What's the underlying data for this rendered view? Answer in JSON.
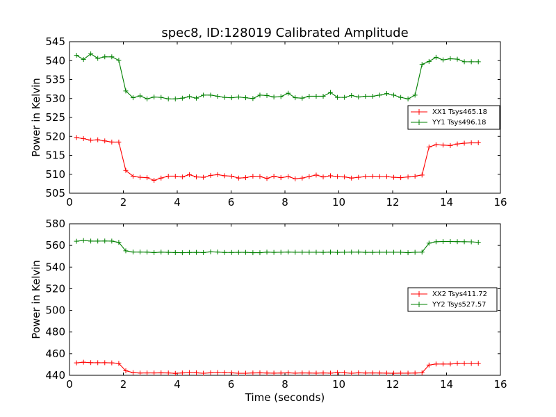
{
  "chart_data": [
    {
      "type": "line",
      "title": "spec8, ID:128019 Calibrated Amplitude",
      "xlabel": "",
      "ylabel": "Power in Kelvin",
      "xlim": [
        0,
        16
      ],
      "ylim": [
        505,
        545
      ],
      "xticks": [
        0,
        2,
        4,
        6,
        8,
        10,
        12,
        14,
        16
      ],
      "yticks": [
        505,
        510,
        515,
        520,
        525,
        530,
        535,
        540,
        545
      ],
      "grid": false,
      "legend_position": "right",
      "x": [
        0.26,
        0.52,
        0.79,
        1.05,
        1.31,
        1.57,
        1.83,
        2.09,
        2.36,
        2.62,
        2.88,
        3.14,
        3.4,
        3.67,
        3.93,
        4.19,
        4.45,
        4.71,
        4.97,
        5.24,
        5.5,
        5.76,
        6.02,
        6.28,
        6.54,
        6.81,
        7.07,
        7.33,
        7.59,
        7.85,
        8.12,
        8.38,
        8.64,
        8.9,
        9.16,
        9.42,
        9.69,
        9.95,
        10.21,
        10.47,
        10.73,
        10.99,
        11.26,
        11.52,
        11.78,
        12.04,
        12.3,
        12.57,
        12.83,
        13.09,
        13.35,
        13.61,
        13.87,
        14.14,
        14.4,
        14.66,
        14.92,
        15.18
      ],
      "series": [
        {
          "name": "XX1 Tsys465.18",
          "color": "#ff0000",
          "values": [
            519.7,
            519.4,
            519.0,
            519.1,
            518.8,
            518.5,
            518.5,
            511.0,
            509.5,
            509.2,
            509.1,
            508.4,
            509.0,
            509.5,
            509.5,
            509.3,
            509.9,
            509.3,
            509.2,
            509.7,
            509.9,
            509.6,
            509.5,
            509.0,
            509.1,
            509.5,
            509.4,
            508.9,
            509.5,
            509.1,
            509.4,
            508.8,
            509.0,
            509.4,
            509.8,
            509.3,
            509.6,
            509.4,
            509.3,
            509.0,
            509.2,
            509.4,
            509.5,
            509.4,
            509.4,
            509.2,
            509.1,
            509.3,
            509.5,
            509.8,
            517.2,
            517.8,
            517.7,
            517.6,
            518.0,
            518.2,
            518.3,
            518.3
          ]
        },
        {
          "name": "YY1 Tsys496.18",
          "color": "#008000",
          "values": [
            541.4,
            540.3,
            541.8,
            540.6,
            541.0,
            541.0,
            540.1,
            532.0,
            530.2,
            530.7,
            529.9,
            530.4,
            530.3,
            529.9,
            529.9,
            530.1,
            530.5,
            530.1,
            530.9,
            530.9,
            530.6,
            530.3,
            530.2,
            530.4,
            530.2,
            530.0,
            530.9,
            530.8,
            530.4,
            530.5,
            531.4,
            530.2,
            530.1,
            530.6,
            530.6,
            530.6,
            531.6,
            530.3,
            530.3,
            530.8,
            530.4,
            530.6,
            530.6,
            530.9,
            531.3,
            530.9,
            530.3,
            529.9,
            530.9,
            539.0,
            539.8,
            540.9,
            540.2,
            540.5,
            540.4,
            539.7,
            539.7,
            539.7
          ]
        }
      ]
    },
    {
      "type": "line",
      "title": "",
      "xlabel": "Time (seconds)",
      "ylabel": "Power in Kelvin",
      "xlim": [
        0,
        16
      ],
      "ylim": [
        440,
        580
      ],
      "xticks": [
        0,
        2,
        4,
        6,
        8,
        10,
        12,
        14,
        16
      ],
      "yticks": [
        440,
        460,
        480,
        500,
        520,
        540,
        560,
        580
      ],
      "grid": false,
      "legend_position": "right",
      "x": [
        0.26,
        0.52,
        0.79,
        1.05,
        1.31,
        1.57,
        1.83,
        2.09,
        2.36,
        2.62,
        2.88,
        3.14,
        3.4,
        3.67,
        3.93,
        4.19,
        4.45,
        4.71,
        4.97,
        5.24,
        5.5,
        5.76,
        6.02,
        6.28,
        6.54,
        6.81,
        7.07,
        7.33,
        7.59,
        7.85,
        8.12,
        8.38,
        8.64,
        8.9,
        9.16,
        9.42,
        9.69,
        9.95,
        10.21,
        10.47,
        10.73,
        10.99,
        11.26,
        11.52,
        11.78,
        12.04,
        12.3,
        12.57,
        12.83,
        13.09,
        13.35,
        13.61,
        13.87,
        14.14,
        14.4,
        14.66,
        14.92,
        15.18
      ],
      "series": [
        {
          "name": "XX2 Tsys411.72",
          "color": "#ff0000",
          "values": [
            451.5,
            452.1,
            451.7,
            451.6,
            451.6,
            451.5,
            451.0,
            444.2,
            442.5,
            442.1,
            442.2,
            442.2,
            442.3,
            442.2,
            441.8,
            442.2,
            442.6,
            442.3,
            441.9,
            442.3,
            442.6,
            442.4,
            442.3,
            441.9,
            441.9,
            442.2,
            442.3,
            442.1,
            442.0,
            442.1,
            442.3,
            442.0,
            442.2,
            442.1,
            442.0,
            442.2,
            442.0,
            442.5,
            442.3,
            441.9,
            442.3,
            442.1,
            442.2,
            442.1,
            442.0,
            441.9,
            442.0,
            442.0,
            442.1,
            442.3,
            449.5,
            450.4,
            450.4,
            450.4,
            451.1,
            451.0,
            450.9,
            450.9
          ]
        },
        {
          "name": "YY2 Tsys527.57",
          "color": "#008000",
          "values": [
            563.9,
            564.6,
            564.0,
            564.0,
            564.1,
            564.0,
            562.8,
            555.0,
            553.9,
            553.9,
            553.8,
            553.4,
            553.8,
            553.6,
            553.4,
            553.3,
            553.5,
            553.6,
            553.4,
            554.1,
            553.9,
            553.5,
            553.5,
            553.6,
            553.6,
            553.3,
            553.3,
            553.8,
            553.6,
            553.7,
            553.9,
            553.7,
            553.7,
            553.7,
            553.7,
            553.6,
            553.8,
            553.6,
            553.7,
            553.8,
            553.9,
            553.6,
            553.6,
            553.7,
            553.7,
            553.7,
            553.7,
            553.3,
            553.7,
            553.8,
            562.1,
            563.4,
            563.6,
            563.6,
            563.5,
            563.4,
            563.3,
            562.9
          ]
        }
      ]
    }
  ]
}
